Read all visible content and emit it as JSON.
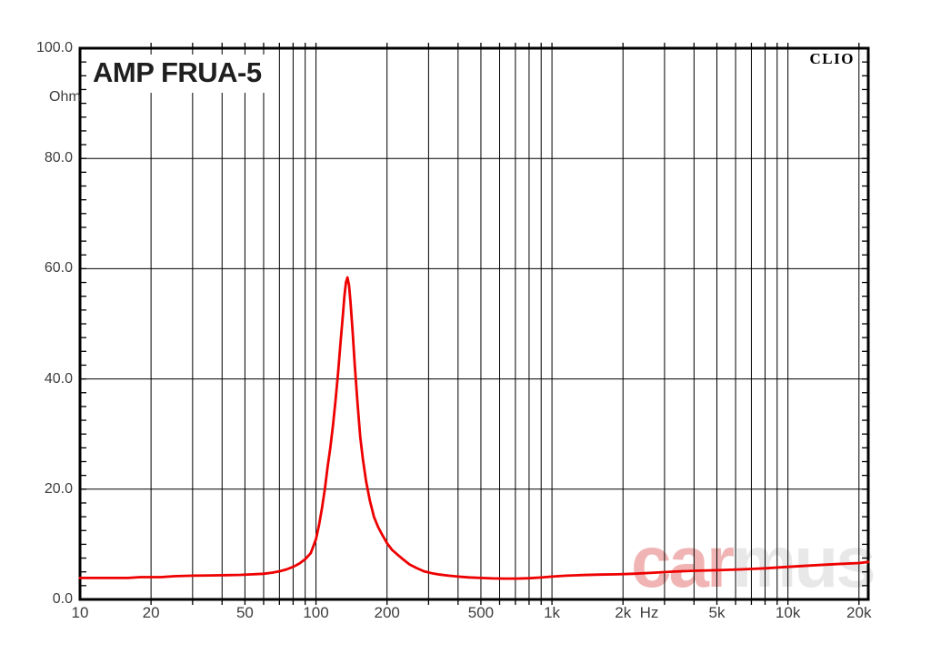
{
  "chart_data": {
    "type": "line",
    "title": "AMP FRUA-5",
    "brand": "CLIO",
    "ylabel": "Ohm",
    "xunit": "Hz",
    "x_scale": "log",
    "xlim": [
      10,
      21900
    ],
    "ylim": [
      0,
      100
    ],
    "grid_color": "#000000",
    "y_gridlines": [
      20,
      40,
      60,
      80
    ],
    "y_minor_tick_step": 2.5,
    "x_gridlines": [
      20,
      30,
      40,
      50,
      60,
      70,
      80,
      90,
      100,
      200,
      300,
      400,
      500,
      600,
      700,
      800,
      900,
      1000,
      2000,
      3000,
      4000,
      5000,
      6000,
      7000,
      8000,
      9000,
      10000,
      20000
    ],
    "x_tick_labels": [
      {
        "f": 10,
        "label": "10"
      },
      {
        "f": 20,
        "label": "20"
      },
      {
        "f": 50,
        "label": "50"
      },
      {
        "f": 100,
        "label": "100"
      },
      {
        "f": 200,
        "label": "200"
      },
      {
        "f": 500,
        "label": "500"
      },
      {
        "f": 1000,
        "label": "1k"
      },
      {
        "f": 2000,
        "label": "2k"
      },
      {
        "f": 5000,
        "label": "5k"
      },
      {
        "f": 10000,
        "label": "10k"
      },
      {
        "f": 20000,
        "label": "20k"
      }
    ],
    "y_tick_labels": [
      {
        "v": 100,
        "label": "100.0"
      },
      {
        "v": 80,
        "label": "80.0"
      },
      {
        "v": 60,
        "label": "60.0"
      },
      {
        "v": 40,
        "label": "40.0"
      },
      {
        "v": 20,
        "label": "20.0"
      },
      {
        "v": 0,
        "label": "0.0"
      }
    ],
    "series": [
      {
        "name": "impedance-curve",
        "color": "#ee0000",
        "points": [
          [
            10,
            3.9
          ],
          [
            14,
            3.9
          ],
          [
            16,
            3.9
          ],
          [
            18,
            4.05
          ],
          [
            22,
            4.05
          ],
          [
            25,
            4.2
          ],
          [
            30,
            4.3
          ],
          [
            36,
            4.35
          ],
          [
            42,
            4.4
          ],
          [
            48,
            4.45
          ],
          [
            54,
            4.55
          ],
          [
            60,
            4.65
          ],
          [
            65,
            4.85
          ],
          [
            70,
            5.1
          ],
          [
            75,
            5.45
          ],
          [
            80,
            5.9
          ],
          [
            85,
            6.5
          ],
          [
            90,
            7.3
          ],
          [
            95,
            8.4
          ],
          [
            100,
            10.9
          ],
          [
            103,
            13.5
          ],
          [
            106,
            16.5
          ],
          [
            109,
            20.0
          ],
          [
            112,
            24.0
          ],
          [
            115,
            27.5
          ],
          [
            118,
            31.5
          ],
          [
            121,
            36.0
          ],
          [
            124,
            41.0
          ],
          [
            127,
            46.5
          ],
          [
            130,
            51.5
          ],
          [
            132,
            55.0
          ],
          [
            134,
            57.5
          ],
          [
            136,
            58.4
          ],
          [
            138,
            57.0
          ],
          [
            140,
            54.0
          ],
          [
            143,
            48.5
          ],
          [
            146,
            42.5
          ],
          [
            150,
            35.5
          ],
          [
            154,
            29.5
          ],
          [
            158,
            25.5
          ],
          [
            163,
            21.5
          ],
          [
            169,
            18.0
          ],
          [
            176,
            15.0
          ],
          [
            183,
            13.2
          ],
          [
            191,
            11.7
          ],
          [
            200,
            10.2
          ],
          [
            210,
            9.0
          ],
          [
            222,
            8.1
          ],
          [
            235,
            7.2
          ],
          [
            250,
            6.3
          ],
          [
            267,
            5.7
          ],
          [
            287,
            5.1
          ],
          [
            310,
            4.75
          ],
          [
            335,
            4.5
          ],
          [
            365,
            4.3
          ],
          [
            400,
            4.15
          ],
          [
            445,
            4.0
          ],
          [
            500,
            3.9
          ],
          [
            560,
            3.82
          ],
          [
            630,
            3.78
          ],
          [
            710,
            3.78
          ],
          [
            800,
            3.85
          ],
          [
            900,
            3.98
          ],
          [
            1000,
            4.15
          ],
          [
            1150,
            4.3
          ],
          [
            1350,
            4.42
          ],
          [
            1600,
            4.5
          ],
          [
            1900,
            4.55
          ],
          [
            2200,
            4.65
          ],
          [
            2700,
            4.85
          ],
          [
            3300,
            5.05
          ],
          [
            4000,
            5.2
          ],
          [
            5000,
            5.3
          ],
          [
            6300,
            5.45
          ],
          [
            8000,
            5.65
          ],
          [
            10000,
            5.9
          ],
          [
            12500,
            6.15
          ],
          [
            16000,
            6.4
          ],
          [
            20000,
            6.6
          ],
          [
            21900,
            6.8
          ]
        ]
      }
    ],
    "peak": {
      "frequency_hz": 136,
      "ohm": 58.4
    },
    "watermark": {
      "part1": "car",
      "part2": "mus",
      "color1": "#f0b4b4",
      "color2": "#e8e8e8"
    }
  }
}
